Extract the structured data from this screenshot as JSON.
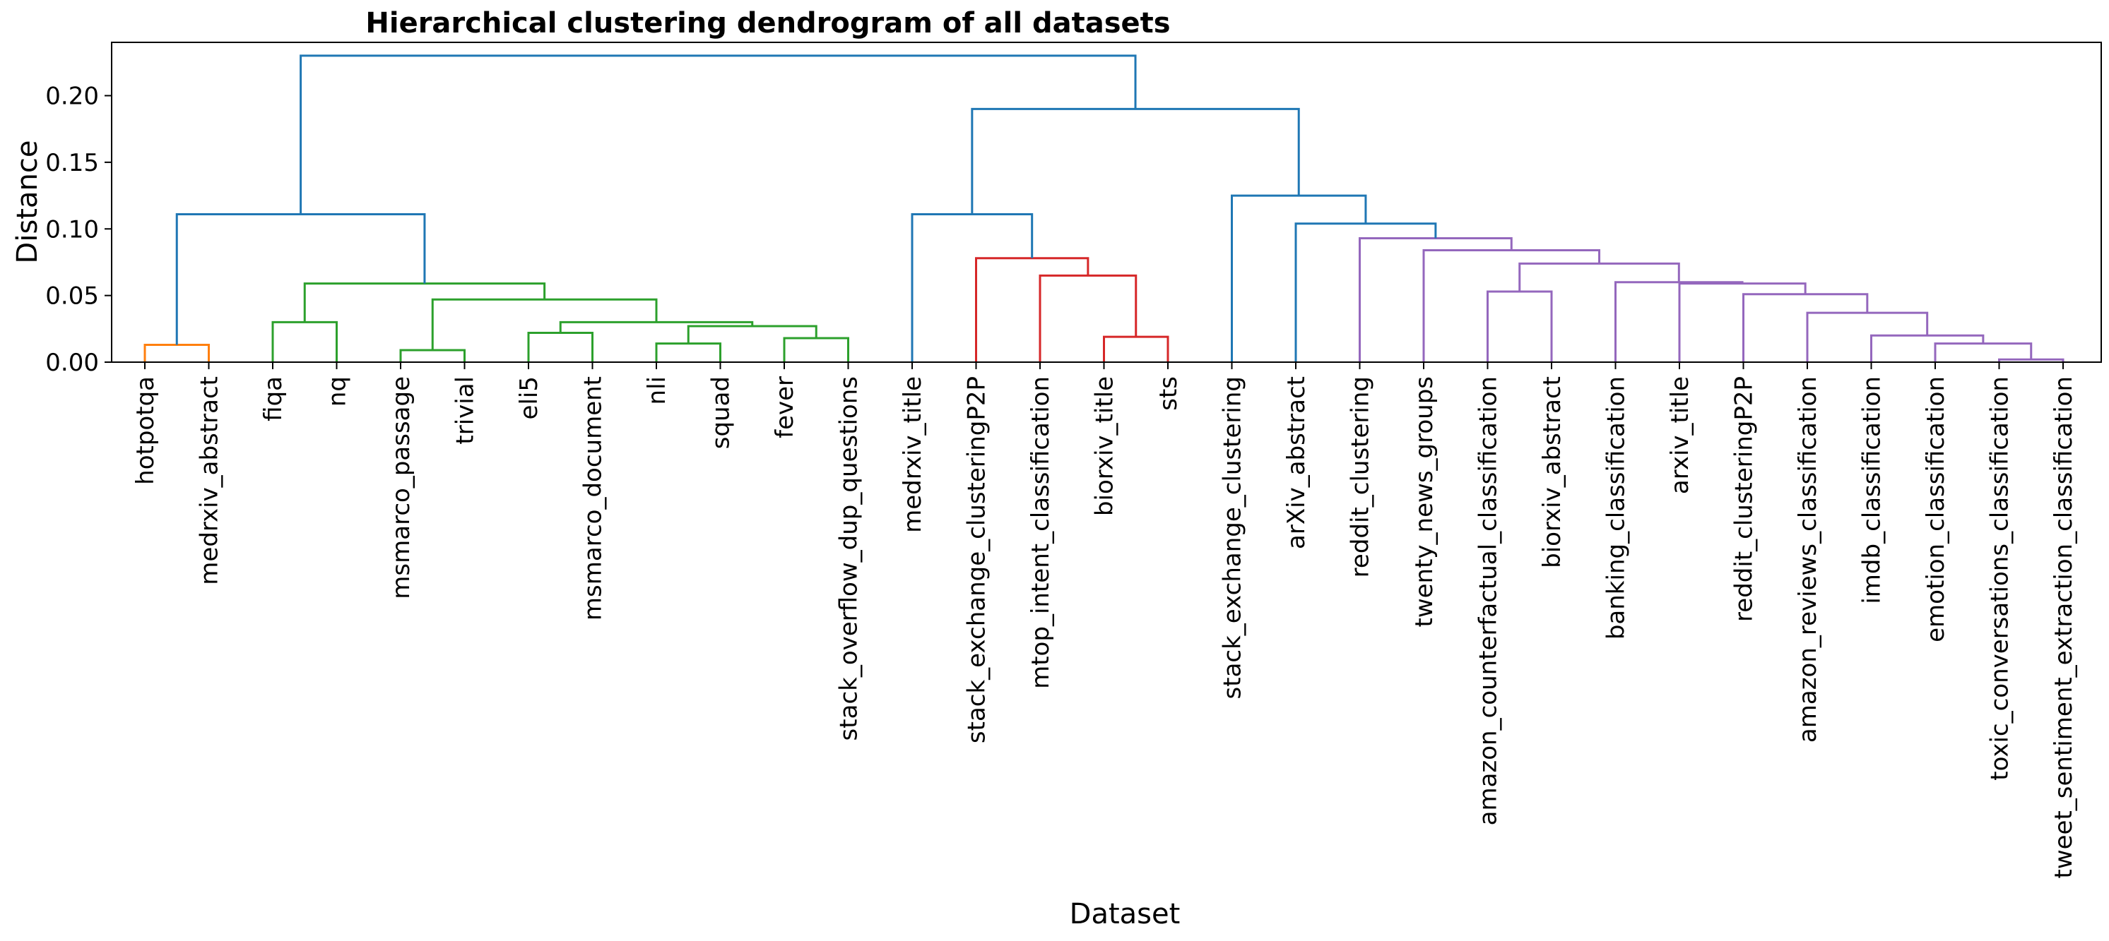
{
  "chart_data": {
    "type": "dendrogram",
    "title": "Hierarchical clustering dendrogram of all datasets",
    "xlabel": "Dataset",
    "ylabel": "Distance",
    "ylim": [
      0,
      0.24
    ],
    "yticks": [
      "0.00",
      "0.05",
      "0.10",
      "0.15",
      "0.20"
    ],
    "ytick_values": [
      0,
      0.05,
      0.1,
      0.15,
      0.2
    ],
    "leaves": [
      "hotpotqa",
      "medrxiv_abstract",
      "fiqa",
      "nq",
      "msmarco_passage",
      "trivial",
      "eli5",
      "msmarco_document",
      "nli",
      "squad",
      "fever",
      "stack_overflow_dup_questions",
      "medrxiv_title",
      "stack_exchange_clusteringP2P",
      "mtop_intent_classification",
      "biorxiv_title",
      "sts",
      "stack_exchange_clustering",
      "arXiv_abstract",
      "reddit_clustering",
      "twenty_news_groups",
      "amazon_counterfactual_classification",
      "biorxiv_abstract",
      "banking_classification",
      "arxiv_title",
      "reddit_clusteringP2P",
      "amazon_reviews_classification",
      "imdb_classification",
      "emotion_classification",
      "toxic_conversations_classification",
      "tweet_sentiment_extraction_classification"
    ],
    "colors": {
      "above_threshold": "#1f77b4",
      "cluster_1": "#ff7f0e",
      "cluster_2": "#2ca02c",
      "cluster_3": "#d62728",
      "cluster_4": "#9467bd"
    },
    "merges": [
      {
        "id": "A1",
        "left": "L0",
        "right": "L1",
        "height": 0.013,
        "color": "cluster_1"
      },
      {
        "id": "G1",
        "left": "L2",
        "right": "L3",
        "height": 0.03,
        "color": "cluster_2"
      },
      {
        "id": "G2",
        "left": "L4",
        "right": "L5",
        "height": 0.009,
        "color": "cluster_2"
      },
      {
        "id": "G3",
        "left": "L6",
        "right": "L7",
        "height": 0.022,
        "color": "cluster_2"
      },
      {
        "id": "G4",
        "left": "L8",
        "right": "L9",
        "height": 0.014,
        "color": "cluster_2"
      },
      {
        "id": "G5",
        "left": "L10",
        "right": "L11",
        "height": 0.018,
        "color": "cluster_2"
      },
      {
        "id": "G6",
        "left": "G4",
        "right": "G5",
        "height": 0.027,
        "color": "cluster_2"
      },
      {
        "id": "G7",
        "left": "G3",
        "right": "G6",
        "height": 0.03,
        "color": "cluster_2"
      },
      {
        "id": "G8",
        "left": "G2",
        "right": "G7",
        "height": 0.047,
        "color": "cluster_2"
      },
      {
        "id": "G9",
        "left": "G1",
        "right": "G8",
        "height": 0.059,
        "color": "cluster_2"
      },
      {
        "id": "B1",
        "left": "A1",
        "right": "G9",
        "height": 0.111,
        "color": "above_threshold"
      },
      {
        "id": "R1",
        "left": "L15",
        "right": "L16",
        "height": 0.019,
        "color": "cluster_3"
      },
      {
        "id": "R2",
        "left": "L14",
        "right": "R1",
        "height": 0.065,
        "color": "cluster_3"
      },
      {
        "id": "R3",
        "left": "L13",
        "right": "R2",
        "height": 0.078,
        "color": "cluster_3"
      },
      {
        "id": "B2",
        "left": "L12",
        "right": "R3",
        "height": 0.111,
        "color": "above_threshold"
      },
      {
        "id": "P1",
        "left": "L29",
        "right": "L30",
        "height": 0.002,
        "color": "cluster_4"
      },
      {
        "id": "P2",
        "left": "L28",
        "right": "P1",
        "height": 0.014,
        "color": "cluster_4"
      },
      {
        "id": "P3",
        "left": "L27",
        "right": "P2",
        "height": 0.02,
        "color": "cluster_4"
      },
      {
        "id": "P4",
        "left": "L26",
        "right": "P3",
        "height": 0.037,
        "color": "cluster_4"
      },
      {
        "id": "P5",
        "left": "L25",
        "right": "P4",
        "height": 0.051,
        "color": "cluster_4"
      },
      {
        "id": "P6",
        "left": "L24",
        "right": "P5",
        "height": 0.059,
        "color": "cluster_4"
      },
      {
        "id": "P7",
        "left": "L23",
        "right": "P6",
        "height": 0.06,
        "color": "cluster_4"
      },
      {
        "id": "P8",
        "left": "L21",
        "right": "L22",
        "height": 0.053,
        "color": "cluster_4"
      },
      {
        "id": "P9",
        "left": "P8",
        "right": "P7",
        "height": 0.074,
        "color": "cluster_4"
      },
      {
        "id": "P10",
        "left": "L20",
        "right": "P9",
        "height": 0.084,
        "color": "cluster_4"
      },
      {
        "id": "P11",
        "left": "L19",
        "right": "P10",
        "height": 0.093,
        "color": "cluster_4"
      },
      {
        "id": "B3",
        "left": "L18",
        "right": "P11",
        "height": 0.104,
        "color": "above_threshold"
      },
      {
        "id": "B4",
        "left": "L17",
        "right": "B3",
        "height": 0.125,
        "color": "above_threshold"
      },
      {
        "id": "B5",
        "left": "B2",
        "right": "B4",
        "height": 0.19,
        "color": "above_threshold"
      },
      {
        "id": "B6",
        "left": "B1",
        "right": "B5",
        "height": 0.23,
        "color": "above_threshold"
      }
    ]
  }
}
